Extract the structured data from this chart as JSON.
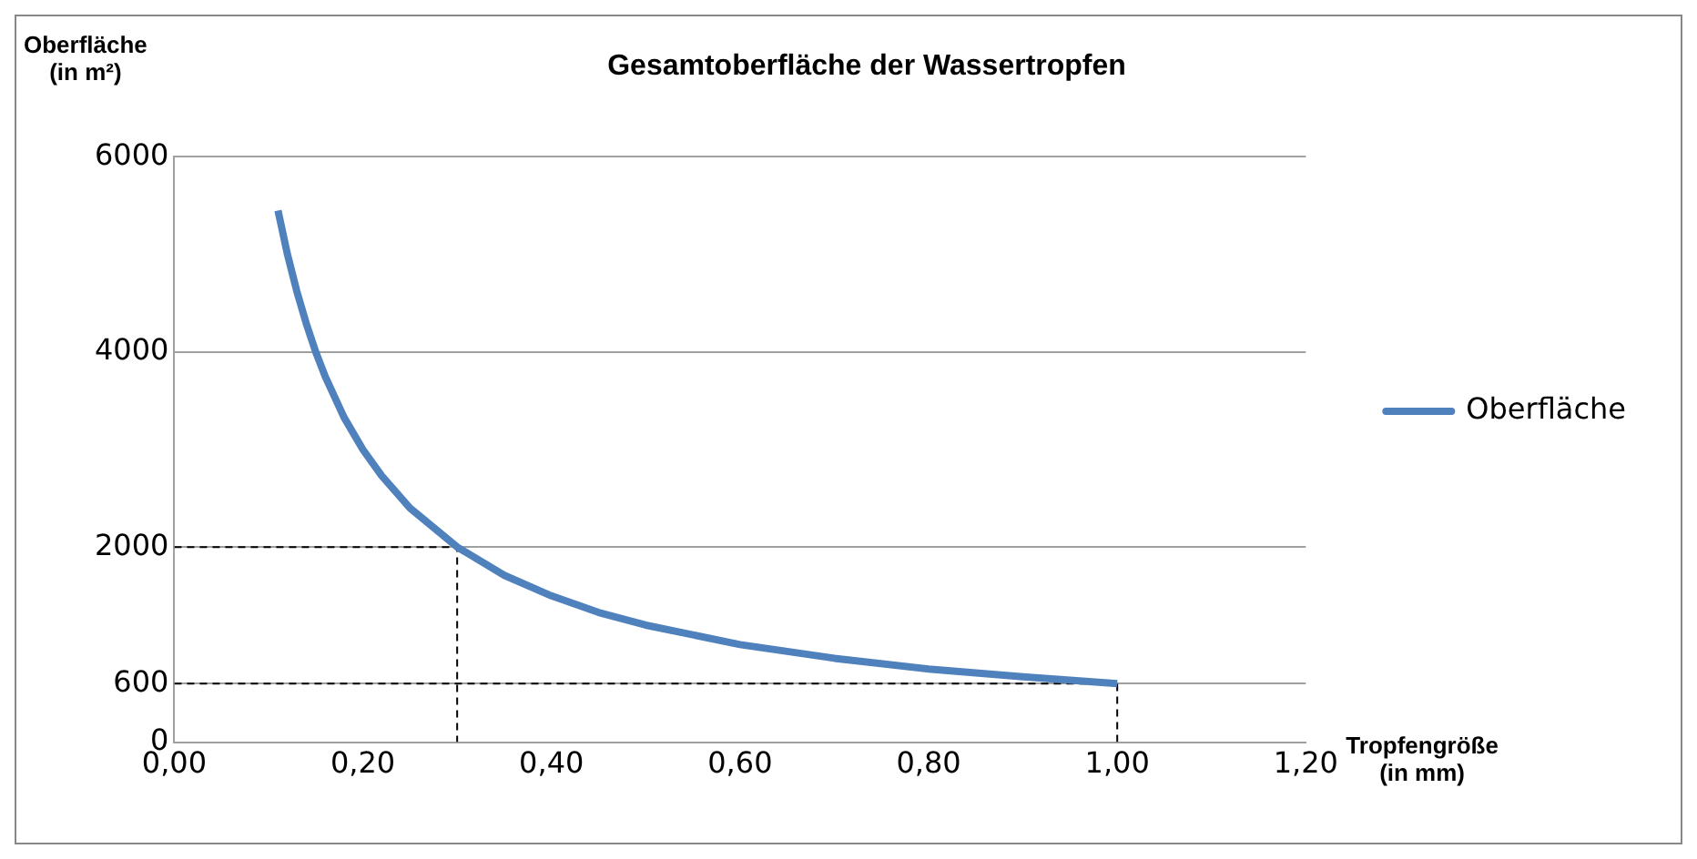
{
  "chart_data": {
    "type": "line",
    "title": "Gesamtoberfläche der Wassertropfen",
    "xlabel": "Tropfengröße\n(in mm)",
    "ylabel": "Oberfläche\n(in m²)",
    "xlim": [
      0,
      1.2
    ],
    "xticks": [
      {
        "value": 0,
        "label": "0,00"
      },
      {
        "value": 0.2,
        "label": "0,20"
      },
      {
        "value": 0.4,
        "label": "0,40"
      },
      {
        "value": 0.6,
        "label": "0,60"
      },
      {
        "value": 0.8,
        "label": "0,80"
      },
      {
        "value": 1,
        "label": "1,00"
      },
      {
        "value": 1.2,
        "label": "1,20"
      }
    ],
    "ylim": [
      0,
      6000
    ],
    "yticks": [
      0,
      600,
      2000,
      4000,
      6000
    ],
    "grid": "y",
    "legend": "right",
    "marker": "none",
    "series": [
      {
        "name": "Oberfläche",
        "color": "#4f81bd",
        "x": [
          0.11,
          0.12,
          0.13,
          0.14,
          0.15,
          0.16,
          0.18,
          0.2,
          0.22,
          0.25,
          0.3,
          0.35,
          0.4,
          0.45,
          0.5,
          0.6,
          0.7,
          0.8,
          0.9,
          1.0
        ],
        "values": [
          5450,
          5000,
          4620,
          4290,
          4000,
          3750,
          3330,
          3000,
          2730,
          2400,
          2000,
          1710,
          1500,
          1330,
          1200,
          1000,
          860,
          750,
          670,
          600
        ]
      },
      {
        "color": "#000000",
        "line_style": "dashed",
        "x": [
          0,
          0.3,
          0.3
        ],
        "values": [
          2000,
          2000,
          0
        ]
      },
      {
        "color": "#000000",
        "line_style": "dashed",
        "x": [
          0,
          1.0,
          1.0
        ],
        "values": [
          600,
          600,
          0
        ]
      }
    ]
  }
}
